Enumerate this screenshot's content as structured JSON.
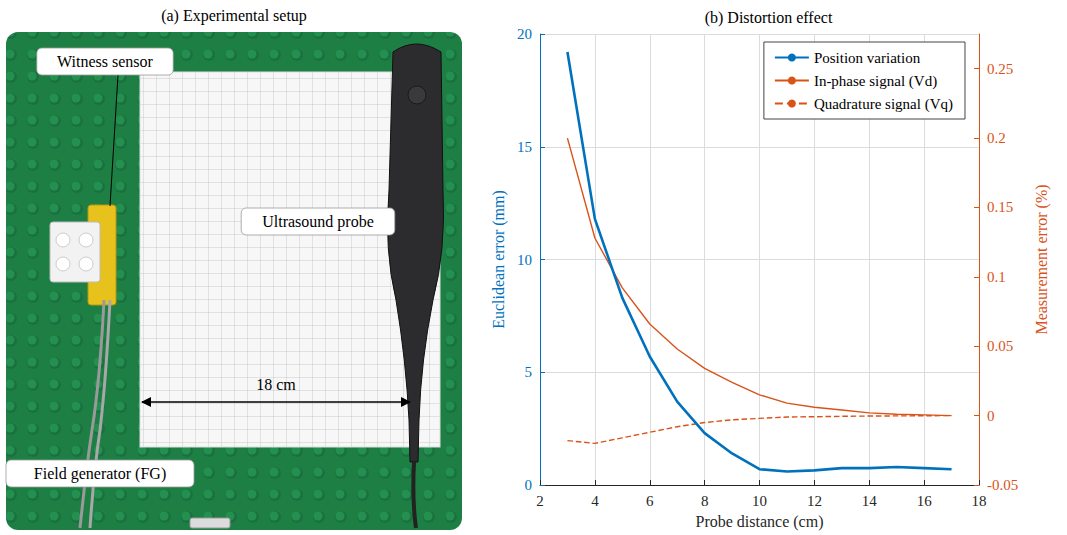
{
  "setup": {
    "title": "(a) Experimental setup",
    "labels": {
      "witness": "Witness sensor",
      "probe": "Ultrasound probe",
      "generator": "Field generator (FG)"
    },
    "distance_label": "18 cm"
  },
  "chart_data": {
    "type": "line",
    "title": "(b) Distortion effect",
    "x_label": "Probe distance (cm)",
    "y_label": "Euclidean error (mm)",
    "y2_label": "Measurement error (%)",
    "x": [
      3,
      4,
      5,
      6,
      7,
      8,
      9,
      10,
      11,
      12,
      13,
      14,
      15,
      16,
      17
    ],
    "xlim": [
      2,
      18
    ],
    "xticks": [
      2,
      4,
      6,
      8,
      10,
      12,
      14,
      16,
      18
    ],
    "ylim": [
      0,
      20
    ],
    "yticks": [
      0,
      5,
      10,
      15,
      20
    ],
    "y2lim": [
      -0.05,
      0.275
    ],
    "y2ticks": [
      -0.05,
      0,
      0.05,
      0.1,
      0.15,
      0.2,
      0.25
    ],
    "grid": true,
    "legend": "top-right",
    "series": [
      {
        "name": "Position variation",
        "color": "#0072bd",
        "line_style": "solid",
        "values": [
          19.2,
          11.8,
          8.3,
          5.7,
          3.7,
          2.3,
          1.4,
          0.7,
          0.6,
          0.65,
          0.75,
          0.75,
          0.8,
          0.75,
          0.7
        ]
      },
      {
        "name": "In-phase signal (Vd)",
        "color": "#d95319",
        "line_style": "solid",
        "axis": "y2",
        "values": [
          0.2,
          0.128,
          0.092,
          0.066,
          0.048,
          0.034,
          0.024,
          0.015,
          0.009,
          0.006,
          0.004,
          0.002,
          0.001,
          0.0005,
          0
        ]
      },
      {
        "name": "Quadrature signal (Vq)",
        "color": "#d95319",
        "line_style": "dashed",
        "axis": "y2",
        "values": [
          -0.018,
          -0.02,
          -0.016,
          -0.012,
          -0.008,
          -0.005,
          -0.003,
          -0.002,
          -0.001,
          -0.0008,
          -0.0005,
          -0.0003,
          -0.0002,
          -0.0001,
          0
        ]
      }
    ]
  }
}
